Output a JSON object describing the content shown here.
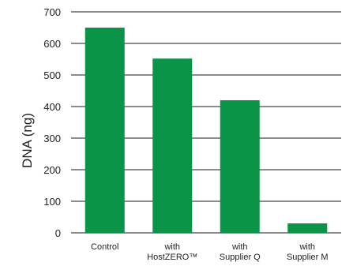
{
  "chart_data": {
    "type": "bar",
    "title": "",
    "xlabel": "",
    "ylabel": "DNA (ng)",
    "ylim": [
      0,
      700
    ],
    "yticks": [
      0,
      100,
      200,
      300,
      400,
      500,
      600,
      700
    ],
    "grid": true,
    "categories": [
      [
        "Control"
      ],
      [
        "with",
        "HostZERO™"
      ],
      [
        "with",
        "Supplier Q"
      ],
      [
        "with",
        "Supplier M"
      ]
    ],
    "values": [
      650,
      552,
      420,
      30
    ],
    "bar_color": "#0a9447"
  }
}
